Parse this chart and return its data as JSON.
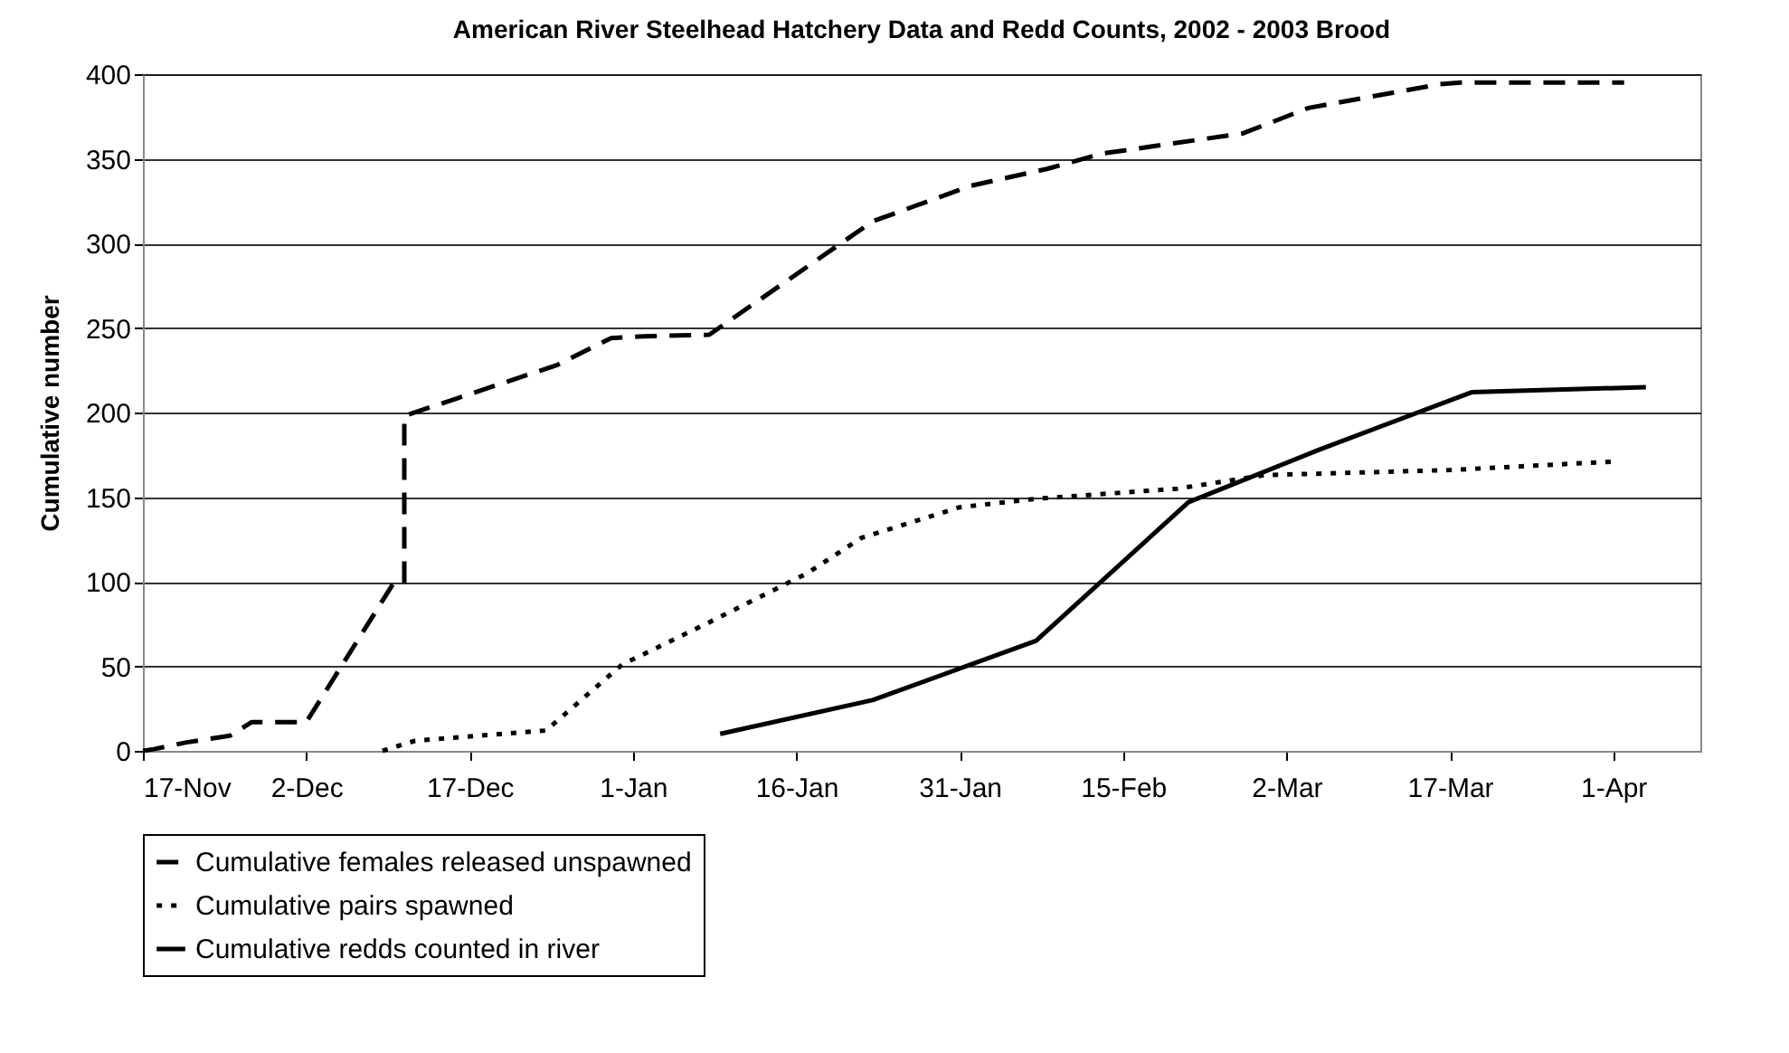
{
  "chart_data": {
    "type": "line",
    "title": "American River Steelhead Hatchery Data and Redd Counts, 2002 - 2003 Brood",
    "ylabel": "Cumulative number",
    "xlim": [
      "2002-11-17",
      "2003-04-09"
    ],
    "xticks": [
      {
        "value": "2002-11-17",
        "label": "17-Nov"
      },
      {
        "value": "2002-12-02",
        "label": "2-Dec"
      },
      {
        "value": "2002-12-17",
        "label": "17-Dec"
      },
      {
        "value": "2003-01-01",
        "label": "1-Jan"
      },
      {
        "value": "2003-01-16",
        "label": "16-Jan"
      },
      {
        "value": "2003-01-31",
        "label": "31-Jan"
      },
      {
        "value": "2003-02-15",
        "label": "15-Feb"
      },
      {
        "value": "2003-03-02",
        "label": "2-Mar"
      },
      {
        "value": "2003-03-17",
        "label": "17-Mar"
      },
      {
        "value": "2003-04-01",
        "label": "1-Apr"
      }
    ],
    "ylim": [
      0,
      400
    ],
    "yticks": [
      0,
      50,
      100,
      150,
      200,
      250,
      300,
      350,
      400
    ],
    "grid": "y",
    "legend": "bottom left",
    "series": [
      {
        "name": "Cumulative females released unspawned",
        "color": "#000000",
        "line_style": "dashed",
        "x": [
          "2002-11-17",
          "2002-11-18",
          "2002-11-21",
          "2002-11-25",
          "2002-11-27",
          "2002-12-02",
          "2002-12-10",
          "2002-12-11",
          "2002-12-11",
          "2002-12-25",
          "2002-12-30",
          "2003-01-02",
          "2003-01-08",
          "2003-01-23",
          "2003-02-01",
          "2003-02-08",
          "2003-02-13",
          "2003-02-26",
          "2003-03-04",
          "2003-03-16",
          "2003-03-18",
          "2003-04-02"
        ],
        "values": [
          0,
          1,
          5,
          9,
          17,
          17,
          99,
          99,
          198,
          228,
          244,
          245,
          246,
          313,
          334,
          344,
          353,
          365,
          380,
          394,
          395,
          395
        ]
      },
      {
        "name": "Cumulative pairs spawned",
        "color": "#000000",
        "line_style": "dotted",
        "x": [
          "2002-12-09",
          "2002-12-12",
          "2002-12-24",
          "2002-12-31",
          "2003-01-08",
          "2003-01-17",
          "2003-01-22",
          "2003-01-31",
          "2003-02-07",
          "2003-02-20",
          "2003-02-28",
          "2003-03-17",
          "2003-04-01"
        ],
        "values": [
          0,
          6,
          12,
          51,
          76,
          105,
          126,
          144,
          149,
          155,
          163,
          166,
          171
        ]
      },
      {
        "name": "Cumulative redds counted in river",
        "color": "#000000",
        "line_style": "solid",
        "x": [
          "2003-01-09",
          "2003-01-23",
          "2003-02-07",
          "2003-02-21",
          "2003-03-05",
          "2003-03-19",
          "2003-04-04"
        ],
        "values": [
          10,
          30,
          65,
          147,
          178,
          212,
          215
        ]
      }
    ]
  }
}
